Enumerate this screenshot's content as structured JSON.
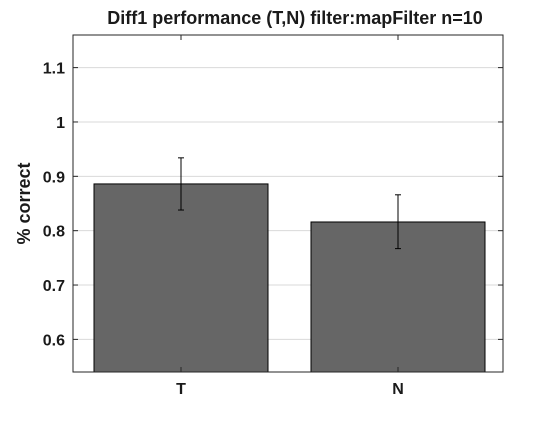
{
  "chart_data": {
    "type": "bar",
    "title": "Diff1 performance (T,N) filter:mapFilter n=10",
    "xlabel": "",
    "ylabel": "% correct",
    "categories": [
      "T",
      "N"
    ],
    "values": [
      0.886,
      0.816
    ],
    "error_low": [
      0.838,
      0.767
    ],
    "error_high": [
      0.934,
      0.866
    ],
    "ylim": [
      0.54,
      1.16
    ],
    "yticks": [
      0.6,
      0.7,
      0.8,
      0.9,
      1,
      1.1
    ],
    "ytick_labels": [
      "0.6",
      "0.7",
      "0.8",
      "0.9",
      "1",
      "1.1"
    ],
    "grid": "horizontal",
    "bar_color": "#666666",
    "bar_edge_color": "#000000",
    "grid_color": "#d9d9d9"
  }
}
